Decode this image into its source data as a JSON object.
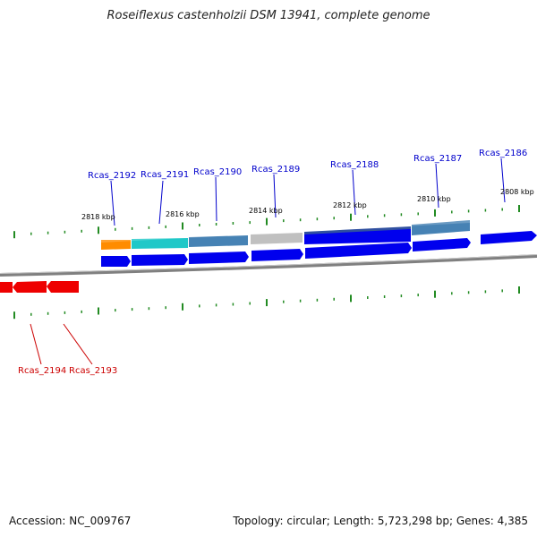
{
  "title": "Roseiflexus castenholzii DSM 13941, complete genome",
  "footer": {
    "accession": "Accession: NC_009767",
    "stats": "Topology: circular; Length: 5,723,298 bp; Genes: 4,385"
  },
  "colors": {
    "forward_gene": "#0000ee",
    "reverse_gene": "#ee0000",
    "tick": "#228b22",
    "backbone": "#808080",
    "forward_label": "#0000cc",
    "reverse_label": "#cc0000"
  },
  "forward_labels": [
    "Rcas_2192",
    "Rcas_2191",
    "Rcas_2190",
    "Rcas_2189",
    "Rcas_2188",
    "Rcas_2187",
    "Rcas_2186"
  ],
  "reverse_labels": [
    "Rcas_2194",
    "Rcas_2193"
  ],
  "kbp_labels": [
    "2818 kbp",
    "2816 kbp",
    "2814 kbp",
    "2812 kbp",
    "2810 kbp",
    "2808 kbp"
  ],
  "feature_colors": [
    "#ff8c00",
    "#20c8c8",
    "#4682b4",
    "#4682b4",
    "#c0c0c0",
    "#3050a0",
    "#4682b4"
  ]
}
